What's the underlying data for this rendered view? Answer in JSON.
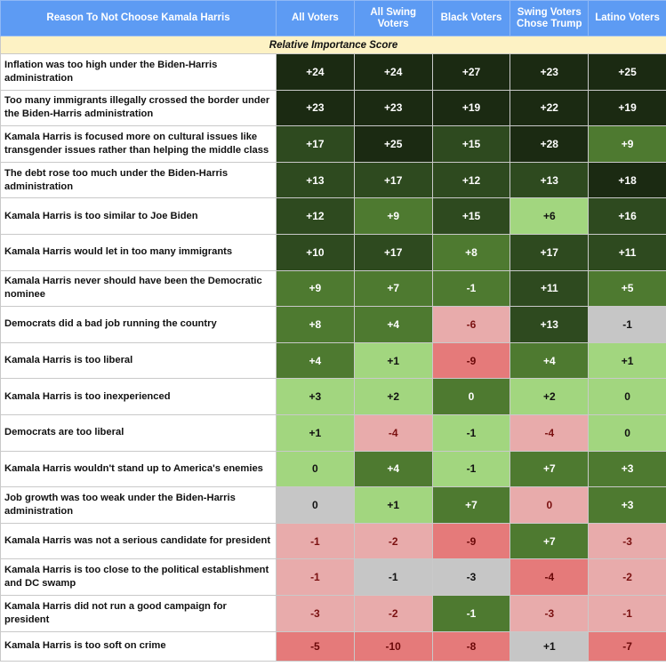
{
  "header": {
    "reason": "Reason To Not Choose Kamala Harris",
    "columns": [
      "All Voters",
      "All Swing Voters",
      "Black Voters",
      "Swing Voters Chose Trump",
      "Latino Voters"
    ]
  },
  "subheader": "Relative Importance Score",
  "colors": {
    "header_bg": "#5d9bf3",
    "subheader_bg": "#fdf2c4",
    "darkest_green": "#1b2a12",
    "dark_green": "#2e4a1f",
    "mid_green": "#4e7a30",
    "light_green": "#a2d67f",
    "neutral_gray": "#c6c6c6",
    "light_red": "#e8abab",
    "strong_red": "#e57a7a"
  },
  "rows": [
    {
      "reason": "Inflation was too high under the Biden-Harris administration",
      "values": [
        "+24",
        "+24",
        "+27",
        "+23",
        "+25"
      ]
    },
    {
      "reason": "Too many immigrants illegally crossed the border under the Biden-Harris administration",
      "values": [
        "+23",
        "+23",
        "+19",
        "+22",
        "+19"
      ]
    },
    {
      "reason": "Kamala Harris is focused more on cultural issues like transgender issues rather than helping the middle class",
      "values": [
        "+17",
        "+25",
        "+15",
        "+28",
        "+9"
      ]
    },
    {
      "reason": "The debt rose too much under the Biden-Harris administration",
      "values": [
        "+13",
        "+17",
        "+12",
        "+13",
        "+18"
      ]
    },
    {
      "reason": "Kamala Harris is too similar to Joe Biden",
      "values": [
        "+12",
        "+9",
        "+15",
        "+6",
        "+16"
      ]
    },
    {
      "reason": "Kamala Harris would let in too many immigrants",
      "values": [
        "+10",
        "+17",
        "+8",
        "+17",
        "+11"
      ]
    },
    {
      "reason": "Kamala Harris never should have been the Democratic nominee",
      "values": [
        "+9",
        "+7",
        "-1",
        "+11",
        "+5"
      ]
    },
    {
      "reason": "Democrats did a bad job running the country",
      "values": [
        "+8",
        "+4",
        "-6",
        "+13",
        "-1"
      ]
    },
    {
      "reason": "Kamala Harris is too liberal",
      "values": [
        "+4",
        "+1",
        "-9",
        "+4",
        "+1"
      ]
    },
    {
      "reason": "Kamala Harris is too inexperienced",
      "values": [
        "+3",
        "+2",
        "0",
        "+2",
        "0"
      ]
    },
    {
      "reason": "Democrats are too liberal",
      "values": [
        "+1",
        "-4",
        "-1",
        "-4",
        "0"
      ]
    },
    {
      "reason": "Kamala Harris wouldn't stand up to America's enemies",
      "values": [
        "0",
        "+4",
        "-1",
        "+7",
        "+3"
      ]
    },
    {
      "reason": "Job growth was too weak under the Biden-Harris administration",
      "values": [
        "0",
        "+1",
        "+7",
        "0",
        "+3"
      ]
    },
    {
      "reason": "Kamala Harris was not a serious candidate for president",
      "values": [
        "-1",
        "-2",
        "-9",
        "+7",
        "-3"
      ]
    },
    {
      "reason": "Kamala Harris is too close to the political establishment and DC swamp",
      "values": [
        "-1",
        "-1",
        "-3",
        "-4",
        "-2"
      ]
    },
    {
      "reason": "Kamala Harris did not run a good campaign for president",
      "values": [
        "-3",
        "-2",
        "-1",
        "-3",
        "-1"
      ]
    },
    {
      "reason": "Kamala Harris is too soft on crime",
      "values": [
        "-5",
        "-10",
        "-8",
        "+1",
        "-7"
      ]
    }
  ]
}
